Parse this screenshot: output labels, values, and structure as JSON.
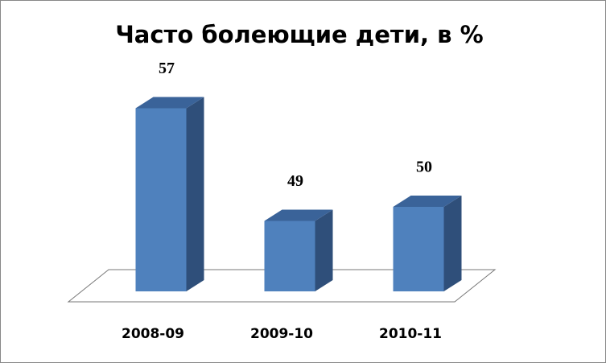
{
  "chart_data": {
    "type": "bar",
    "title": "Часто болеющие дети, в %",
    "categories": [
      "2008-09",
      "2009-10",
      "2010-11"
    ],
    "values": [
      57,
      49,
      50
    ],
    "color": "#4f81bd",
    "ylim": [
      44,
      58
    ]
  }
}
